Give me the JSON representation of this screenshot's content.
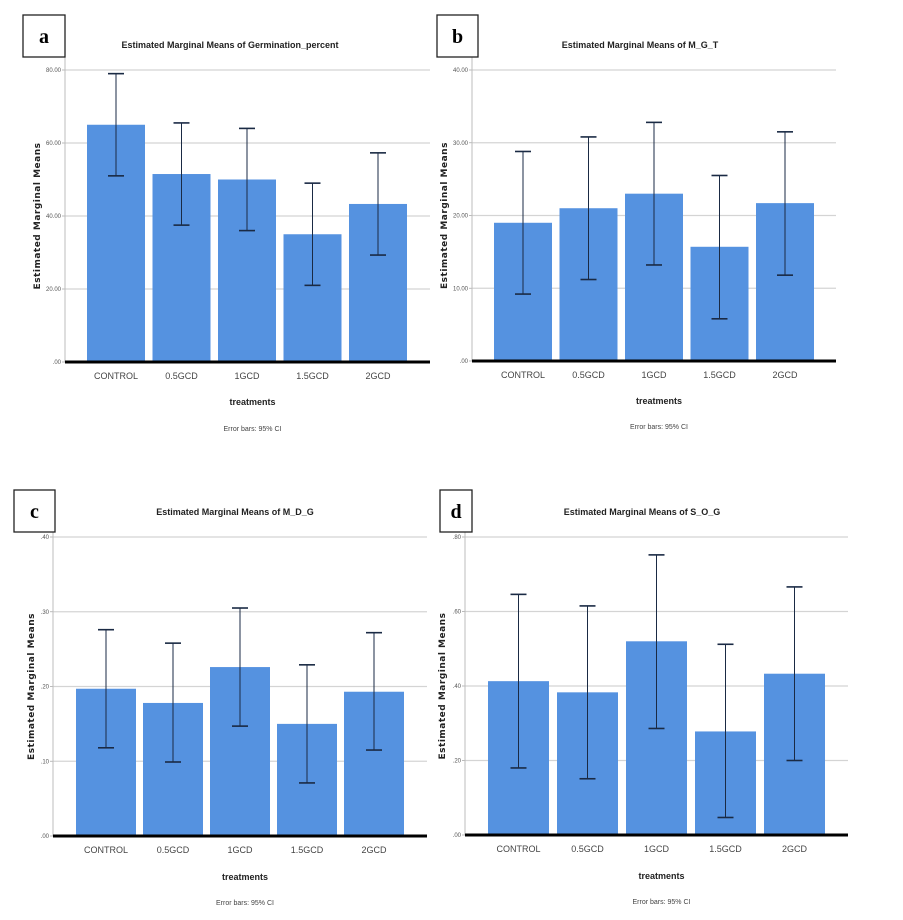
{
  "chart_data": [
    {
      "panel": "a",
      "type": "bar",
      "title": "Estimated Marginal Means of Germination_percent",
      "xlabel": "treatments",
      "ylabel": "Estimated Marginal Means",
      "footnote": "Error bars: 95% CI",
      "categories": [
        "CONTROL",
        "0.5GCD",
        "1GCD",
        "1.5GCD",
        "2GCD"
      ],
      "values": [
        65.0,
        51.5,
        50.0,
        35.0,
        43.3
      ],
      "ci_lower": [
        51.0,
        37.5,
        36.0,
        21.0,
        29.3
      ],
      "ci_upper": [
        79.0,
        65.5,
        64.0,
        49.0,
        57.3
      ],
      "ylim": [
        0,
        80
      ],
      "yticks": [
        0,
        20,
        40,
        60,
        80
      ],
      "ytick_labels": [
        ".00",
        "20.00",
        "40.00",
        "60.00",
        "80.00"
      ],
      "grid": true,
      "bar_color": "#5592e0"
    },
    {
      "panel": "b",
      "type": "bar",
      "title": "Estimated Marginal Means of M_G_T",
      "xlabel": "treatments",
      "ylabel": "Estimated Marginal Means",
      "footnote": "Error bars: 95% CI",
      "categories": [
        "CONTROL",
        "0.5GCD",
        "1GCD",
        "1.5GCD",
        "2GCD"
      ],
      "values": [
        19.0,
        21.0,
        23.0,
        15.7,
        21.7
      ],
      "ci_lower": [
        9.2,
        11.2,
        13.2,
        5.8,
        11.8
      ],
      "ci_upper": [
        28.8,
        30.8,
        32.8,
        25.5,
        31.5
      ],
      "ylim": [
        0,
        40
      ],
      "yticks": [
        0,
        10,
        20,
        30,
        40
      ],
      "ytick_labels": [
        ".00",
        "10.00",
        "20.00",
        "30.00",
        "40.00"
      ],
      "grid": true,
      "bar_color": "#5592e0"
    },
    {
      "panel": "c",
      "type": "bar",
      "title": "Estimated Marginal Means of M_D_G",
      "xlabel": "treatments",
      "ylabel": "Estimated Marginal Means",
      "footnote": "Error bars: 95% CI",
      "categories": [
        "CONTROL",
        "0.5GCD",
        "1GCD",
        "1.5GCD",
        "2GCD"
      ],
      "values": [
        0.197,
        0.178,
        0.226,
        0.15,
        0.193
      ],
      "ci_lower": [
        0.118,
        0.099,
        0.147,
        0.071,
        0.115
      ],
      "ci_upper": [
        0.276,
        0.258,
        0.305,
        0.229,
        0.272
      ],
      "ylim": [
        0,
        0.4
      ],
      "yticks": [
        0,
        0.1,
        0.2,
        0.3,
        0.4
      ],
      "ytick_labels": [
        ".00",
        ".10",
        ".20",
        ".30",
        ".40"
      ],
      "grid": true,
      "bar_color": "#5592e0"
    },
    {
      "panel": "d",
      "type": "bar",
      "title": "Estimated Marginal Means of S_O_G",
      "xlabel": "treatments",
      "ylabel": "Estimated Marginal Means",
      "footnote": "Error bars: 95% CI",
      "categories": [
        "CONTROL",
        "0.5GCD",
        "1GCD",
        "1.5GCD",
        "2GCD"
      ],
      "values": [
        0.413,
        0.383,
        0.52,
        0.278,
        0.433
      ],
      "ci_lower": [
        0.18,
        0.151,
        0.286,
        0.047,
        0.2
      ],
      "ci_upper": [
        0.646,
        0.615,
        0.752,
        0.512,
        0.666
      ],
      "ylim": [
        0,
        0.8
      ],
      "yticks": [
        0,
        0.2,
        0.4,
        0.6,
        0.8
      ],
      "ytick_labels": [
        ".00",
        ".20",
        ".40",
        ".60",
        ".80"
      ],
      "grid": true,
      "bar_color": "#5592e0"
    }
  ],
  "colors": {
    "bar": "#5592e0",
    "error_bar": "#1a2a44",
    "gridline": "#d4d4d4",
    "baseline": "#000000"
  }
}
